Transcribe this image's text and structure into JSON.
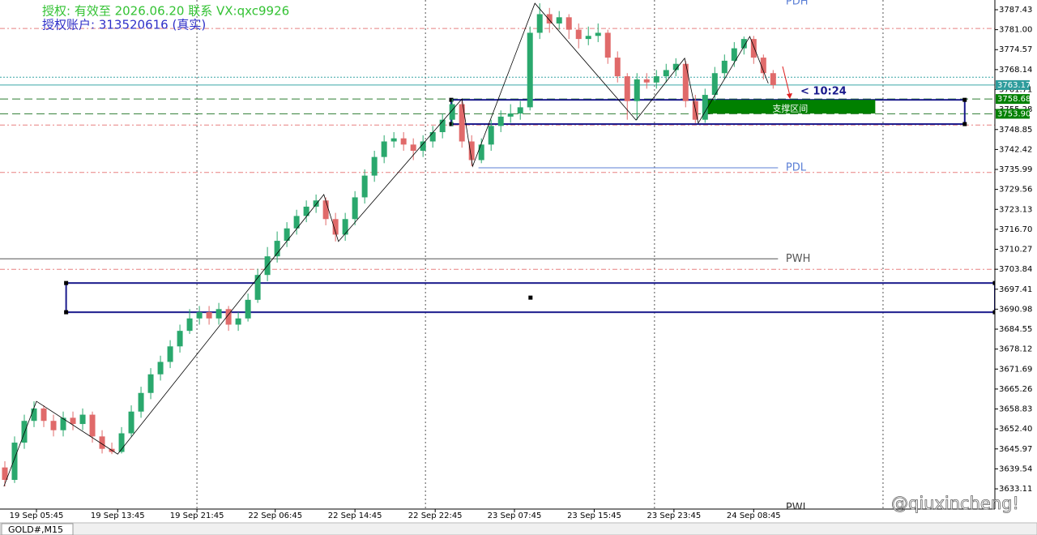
{
  "chart_data": {
    "type": "candlestick",
    "annotations": [
      "授权: 有效至 2026.06.20 联系 VX:qxc9926",
      "授权账户: 313520616 (真实)"
    ],
    "symbol_tab": "GOLD#,M15",
    "watermark": "@qiuxincheng!",
    "countdown": "< 10:24",
    "up_color": "#2aa86d",
    "down_color": "#e06a6a",
    "xlim": [
      -0.5,
      101.8
    ],
    "ylim": [
      3626.6,
      3790.56
    ],
    "xticks": [
      {
        "value": 3.25,
        "label": "19 Sep 05:45"
      },
      {
        "value": 11.6,
        "label": "19 Sep 13:45"
      },
      {
        "value": 19.75,
        "label": "19 Sep 21:45"
      },
      {
        "value": 27.8,
        "label": "22 Sep 06:45"
      },
      {
        "value": 36,
        "label": "22 Sep 14:45"
      },
      {
        "value": 44.25,
        "label": "22 Sep 22:45"
      },
      {
        "value": 52.4,
        "label": "23 Sep 07:45"
      },
      {
        "value": 60.6,
        "label": "23 Sep 15:45"
      },
      {
        "value": 68.8,
        "label": "23 Sep 23:45"
      },
      {
        "value": 77,
        "label": "24 Sep 08:45"
      }
    ],
    "yticks": [
      3787.43,
      {
        "value": 3781,
        "label": "3781.00"
      },
      3774.57,
      3768.14,
      3761.71,
      3755.28,
      3748.85,
      3742.42,
      3735.99,
      3729.56,
      3723.13,
      {
        "value": 3716.7,
        "label": "3716.70"
      },
      3710.27,
      3703.84,
      3697.41,
      3690.98,
      3684.55,
      3678.12,
      3671.69,
      3665.26,
      3658.83,
      {
        "value": 3652.4,
        "label": "3652.40"
      },
      3645.97,
      3639.54,
      3633.11
    ],
    "separators": [
      19.75,
      43.25,
      66.8,
      90.3
    ],
    "open": [
      3640,
      3636,
      3648,
      3655,
      3659,
      3655,
      3652,
      3656,
      3654,
      3657,
      3650,
      3646,
      3645,
      3651,
      3658,
      3664,
      3670,
      3674,
      3679,
      3684,
      3688,
      3690,
      3688,
      3691,
      3686,
      3688,
      3694,
      3702,
      3708,
      3713,
      3717,
      3721,
      3724,
      3726,
      3720,
      3715,
      3720,
      3727,
      3734,
      3740,
      3745,
      3746,
      3744,
      3742,
      3745,
      3748,
      3752,
      3757,
      3745,
      3739,
      3744,
      3750,
      3753,
      3754,
      3756,
      3780,
      3786,
      3783,
      3785,
      3781,
      3778,
      3779,
      3780,
      3772,
      3766,
      3758,
      3765,
      3764,
      3766,
      3768,
      3770,
      3758,
      3752,
      3760,
      3767,
      3771,
      3775,
      3778,
      3772,
      3767
    ],
    "high": [
      3642,
      3650,
      3657,
      3661.3,
      3660,
      3657,
      3658,
      3658,
      3659,
      3658,
      3652,
      3648,
      3653,
      3660,
      3666,
      3672,
      3676,
      3681,
      3686,
      3691,
      3692,
      3692,
      3693,
      3692,
      3690,
      3696,
      3704,
      3711,
      3716,
      3719,
      3723,
      3726,
      3727.9,
      3727,
      3722,
      3722,
      3729,
      3736,
      3742,
      3747,
      3748,
      3748,
      3746,
      3747,
      3750,
      3754,
      3758.7,
      3758,
      3747,
      3746,
      3752,
      3755,
      3757,
      3758,
      3782,
      3789.5,
      3788,
      3787,
      3786,
      3783,
      3782,
      3783,
      3781,
      3774,
      3767,
      3767,
      3767,
      3768,
      3770,
      3771.8,
      3771,
      3760,
      3762,
      3769,
      3773,
      3777,
      3778.8,
      3779,
      3773,
      3768
    ],
    "low": [
      3633.9,
      3635,
      3646,
      3653,
      3653,
      3650,
      3650,
      3652,
      3652,
      3648,
      3644.5,
      3644.3,
      3644.5,
      3650,
      3656,
      3662,
      3668,
      3672,
      3677,
      3683,
      3686,
      3686,
      3686,
      3684,
      3684,
      3687,
      3693,
      3700,
      3706,
      3711,
      3715,
      3719,
      3722,
      3718,
      3712.8,
      3713,
      3718,
      3725,
      3732,
      3738,
      3743,
      3742,
      3739,
      3740,
      3743,
      3746,
      3750,
      3743,
      3737,
      3738,
      3742,
      3748,
      3751,
      3752,
      3755,
      3778,
      3780,
      3781,
      3778,
      3775,
      3776,
      3777,
      3770,
      3764,
      3752,
      3751.9,
      3762,
      3762,
      3764,
      3766,
      3756,
      3750.9,
      3751,
      3758,
      3765,
      3769,
      3773,
      3770,
      3765,
      3762
    ],
    "close": [
      3636,
      3648,
      3655,
      3659,
      3655,
      3652,
      3656,
      3654,
      3657,
      3650,
      3646,
      3645,
      3651,
      3658,
      3664,
      3670,
      3674,
      3679,
      3684,
      3688,
      3690,
      3688,
      3691,
      3686,
      3688,
      3694,
      3702,
      3708,
      3713,
      3717,
      3721,
      3724,
      3726,
      3720,
      3715,
      3720,
      3727,
      3734,
      3740,
      3745,
      3746,
      3744,
      3742,
      3745,
      3748,
      3752,
      3757,
      3745,
      3739,
      3744,
      3750,
      3753,
      3754,
      3756,
      3780,
      3786,
      3783,
      3785,
      3781,
      3778,
      3779,
      3780,
      3772,
      3766,
      3758,
      3765,
      3764,
      3766,
      3768,
      3770,
      3758,
      3752,
      3760,
      3767,
      3771,
      3775,
      3778,
      3772,
      3767,
      3763.17
    ],
    "zigzag": {
      "x": [
        -0.1,
        3.25,
        11.6,
        32.8,
        34.3,
        47,
        48.1,
        54.5,
        64.9,
        69.9,
        71.3,
        76.6,
        78.5
      ],
      "y": [
        3633.9,
        3661.3,
        3644.3,
        3727.9,
        3712.8,
        3758.7,
        3737,
        3789.5,
        3751.9,
        3771.8,
        3750.9,
        3778.8,
        3763.7
      ]
    },
    "levels": [
      {
        "value": 3781.4,
        "color": "#e88080",
        "dash": "6 3 2 3"
      },
      {
        "value": 3765.7,
        "color": "#3aa6a6",
        "dash": "2 2"
      },
      {
        "value": 3763.17,
        "color": "#3aa6a6",
        "tag_color": "#2e9c9c"
      },
      {
        "value": 3758.68,
        "color": "#2e7d32",
        "dash": "10 5",
        "tag_color": "#008000"
      },
      {
        "value": 3753.9,
        "label": "3753.90",
        "color": "#2e7d32",
        "dash": "10 5",
        "tag_color": "#008000"
      },
      {
        "value": 3750.3,
        "color": "#e88080",
        "dash": "6 3 2 3"
      },
      {
        "value": 3735,
        "color": "#e88080",
        "dash": "6 3 2 3"
      },
      {
        "value": 3703.8,
        "color": "#e88080",
        "dash": "6 3 2 3"
      }
    ],
    "named_levels": [
      {
        "name": "PDH",
        "value": 3790,
        "color": "#5b7fd6"
      },
      {
        "name": "PDL",
        "value": 3736.5,
        "from": 48.7,
        "to": 79.5,
        "color": "#5b7fd6"
      },
      {
        "name": "PWH",
        "value": 3707.2,
        "from": -0.5,
        "to": 79.5,
        "color": "#555555"
      },
      {
        "name": "PWL",
        "value": 3627,
        "color": "#333333"
      }
    ],
    "zones": [
      {
        "x": [
          45.9,
          98.7
        ],
        "y": [
          3750.6,
          3758.4
        ],
        "color": "#1a1a8c"
      },
      {
        "x": [
          6.3,
          101.8
        ],
        "y": [
          3690,
          3699.4
        ],
        "color": "#1a1a8c"
      }
    ],
    "support": {
      "label": "支撑区间",
      "x": [
        72,
        89.5
      ],
      "y": [
        3754,
        3758.4
      ],
      "color": "#008000"
    }
  }
}
